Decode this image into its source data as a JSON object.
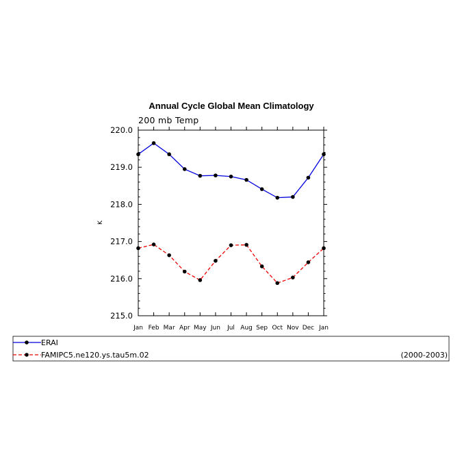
{
  "chart_data": {
    "type": "line",
    "title": "Annual Cycle Global Mean Climatology",
    "subtitle": "200 mb Temp",
    "ylabel": "K",
    "ylim": [
      215.0,
      220.0
    ],
    "yticks": [
      "215.0",
      "216.0",
      "217.0",
      "218.0",
      "219.0",
      "220.0"
    ],
    "categories": [
      "Jan",
      "Feb",
      "Mar",
      "Apr",
      "May",
      "Jun",
      "Jul",
      "Aug",
      "Sep",
      "Oct",
      "Nov",
      "Dec",
      "Jan"
    ],
    "series": [
      {
        "name": "ERAI",
        "color": "#0000dd",
        "line_style": "solid",
        "values": [
          219.35,
          219.65,
          219.35,
          218.95,
          218.77,
          218.78,
          218.75,
          218.66,
          218.41,
          218.18,
          218.2,
          218.72,
          219.35
        ]
      },
      {
        "name": "FAMIPC5.ne120.ys.tau5m.02",
        "color": "#ee0000",
        "line_style": "dashed",
        "values": [
          216.82,
          216.92,
          216.63,
          216.19,
          215.96,
          216.48,
          216.9,
          216.91,
          216.33,
          215.88,
          216.03,
          216.44,
          216.82
        ]
      }
    ],
    "legend": {
      "placement": "bottom",
      "period": "(2000-2003)"
    },
    "grid": false
  }
}
